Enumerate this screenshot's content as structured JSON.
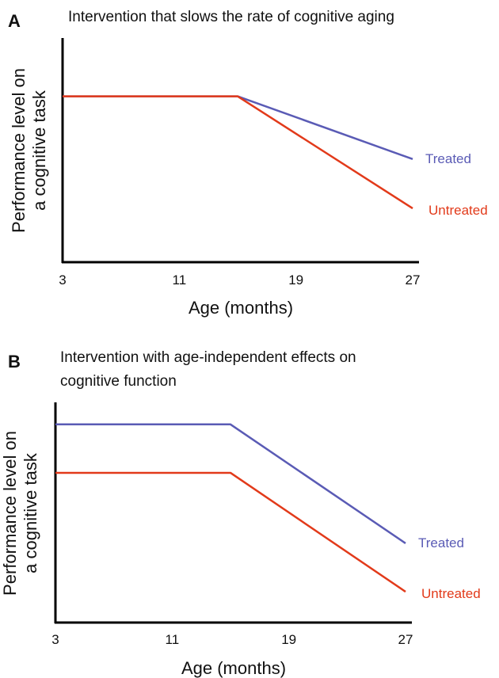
{
  "chart_data": [
    {
      "panel_label": "A",
      "title": "Intervention that slows the rate of cognitive aging",
      "type": "line",
      "xlabel": "Age (months)",
      "ylabel": "Performance level on a cognitive task",
      "xlim": [
        3,
        27
      ],
      "xticks": [
        "3",
        "11",
        "19",
        "27"
      ],
      "ylim": [
        0,
        1
      ],
      "yticks_shown": false,
      "grid": false,
      "series": [
        {
          "name": "Treated",
          "color": "#5a5bb5",
          "points": [
            [
              3,
              0.74
            ],
            [
              15,
              0.74
            ],
            [
              27,
              0.46
            ]
          ]
        },
        {
          "name": "Untreated",
          "color": "#e23a1a",
          "points": [
            [
              3,
              0.74
            ],
            [
              15,
              0.74
            ],
            [
              27,
              0.24
            ]
          ]
        }
      ]
    },
    {
      "panel_label": "B",
      "title": "Intervention with age-independent effects on cognitive function",
      "type": "line",
      "xlabel": "Age (months)",
      "ylabel": "Performance level on a cognitive task",
      "xlim": [
        3,
        27
      ],
      "xticks": [
        "3",
        "11",
        "19",
        "27"
      ],
      "ylim": [
        0,
        1
      ],
      "yticks_shown": false,
      "grid": false,
      "series": [
        {
          "name": "Treated",
          "color": "#5a5bb5",
          "points": [
            [
              3,
              0.9
            ],
            [
              15,
              0.9
            ],
            [
              27,
              0.36
            ]
          ]
        },
        {
          "name": "Untreated",
          "color": "#e23a1a",
          "points": [
            [
              3,
              0.68
            ],
            [
              15,
              0.68
            ],
            [
              27,
              0.14
            ]
          ]
        }
      ]
    }
  ]
}
